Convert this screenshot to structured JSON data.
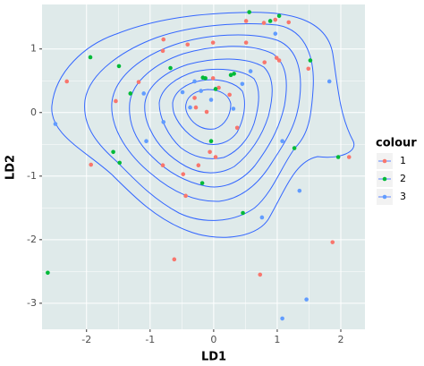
{
  "chart_data": {
    "type": "scatter",
    "x_label": "LD1",
    "y_label": "LD2",
    "legend_title": "colour",
    "legend_position": "right",
    "xlim": [
      -2.7,
      2.38
    ],
    "ylim": [
      -3.41,
      1.7
    ],
    "xticks": [
      -2,
      -1,
      0,
      1,
      2
    ],
    "yticks": [
      -3,
      -2,
      -1,
      0,
      1
    ],
    "grid": true,
    "series": [
      {
        "name": "1",
        "color": "#f8766d",
        "x": [
          -2.31,
          -1.93,
          -1.54,
          -1.18,
          -0.79,
          -0.8,
          -0.41,
          -0.01,
          -0.01,
          -0.3,
          -0.28,
          -0.11,
          0.08,
          0.25,
          0.51,
          0.51,
          0.79,
          0.97,
          1.18,
          0.99,
          1.03,
          0.8,
          1.49,
          -0.06,
          0.03,
          -0.24,
          -0.44,
          -0.62,
          0.73,
          1.87,
          2.13,
          0.37,
          -0.48,
          -0.8
        ],
        "values": [
          0.49,
          -0.82,
          0.18,
          0.48,
          1.15,
          0.97,
          1.07,
          1.1,
          0.54,
          0.23,
          0.08,
          0.01,
          0.39,
          0.28,
          1.44,
          1.1,
          1.41,
          1.46,
          1.42,
          0.86,
          0.82,
          0.79,
          0.69,
          -0.62,
          -0.7,
          -0.83,
          -1.31,
          -2.31,
          -2.55,
          -2.04,
          -0.7,
          -0.24,
          -0.97,
          -0.83
        ]
      },
      {
        "name": "2",
        "color": "#00ba38",
        "x": [
          -2.61,
          -1.94,
          -1.49,
          -1.31,
          -1.58,
          -1.48,
          -0.68,
          -0.13,
          0.03,
          -0.17,
          0.27,
          -0.04,
          -0.18,
          0.46,
          0.56,
          0.89,
          1.03,
          1.27,
          1.96,
          0.32,
          1.52
        ],
        "values": [
          -2.52,
          0.87,
          0.73,
          0.3,
          -0.62,
          -0.79,
          0.7,
          0.54,
          0.37,
          0.55,
          0.59,
          -0.45,
          -1.11,
          -1.58,
          1.58,
          1.44,
          1.52,
          -0.56,
          -0.7,
          0.61,
          0.82
        ]
      },
      {
        "name": "3",
        "color": "#619cff",
        "x": [
          -2.49,
          -1.06,
          -1.1,
          -0.79,
          -0.49,
          -0.3,
          -0.2,
          -0.04,
          0.31,
          0.58,
          0.45,
          0.76,
          1.08,
          1.35,
          1.46,
          1.08,
          1.82,
          0.97,
          -0.37
        ],
        "values": [
          -0.18,
          -0.45,
          0.3,
          -0.15,
          0.32,
          0.49,
          0.34,
          0.2,
          0.06,
          0.65,
          0.45,
          -1.65,
          -0.45,
          -1.23,
          -2.94,
          -3.24,
          0.49,
          1.24,
          0.08
        ]
      }
    ]
  }
}
